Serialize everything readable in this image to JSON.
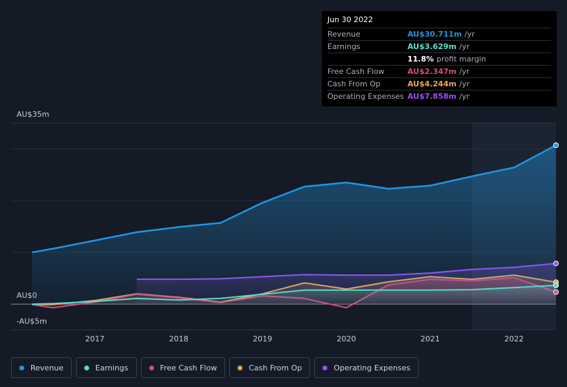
{
  "chart_data": {
    "type": "line",
    "x": [
      2016.25,
      2016.5,
      2017,
      2017.5,
      2018,
      2018.5,
      2019,
      2019.5,
      2020,
      2020.5,
      2021,
      2021.5,
      2022,
      2022.5
    ],
    "xlim": [
      2016,
      2022.5
    ],
    "xticks": [
      2017,
      2018,
      2019,
      2020,
      2021,
      2022
    ],
    "ylim": [
      -5,
      35
    ],
    "yticks": [
      {
        "value": 35,
        "label": "AU$35m"
      },
      {
        "value": 0,
        "label": "AU$0"
      },
      {
        "value": -5,
        "label": "-AU$5m"
      }
    ],
    "grid_values": [
      10,
      20,
      30
    ],
    "highlight_start": 2021.5,
    "series": [
      {
        "name": "Revenue",
        "color": "#2394df",
        "values": [
          10,
          10.7,
          12.3,
          13.9,
          14.9,
          15.7,
          19.6,
          22.7,
          23.5,
          22.3,
          22.9,
          24.7,
          26.4,
          30.711
        ]
      },
      {
        "name": "Earnings",
        "color": "#5ae0cc",
        "values": [
          0,
          0.1,
          0.5,
          1.1,
          0.8,
          1.1,
          1.9,
          2.7,
          2.7,
          2.7,
          2.7,
          2.8,
          3.2,
          3.629
        ]
      },
      {
        "name": "Free Cash Flow",
        "color": "#d84a85",
        "values": [
          -0.1,
          -0.7,
          0.4,
          1.9,
          1.2,
          0.3,
          1.6,
          1.1,
          -0.7,
          3.7,
          4.8,
          4.5,
          5.1,
          2.347
        ]
      },
      {
        "name": "Cash From Op",
        "color": "#eaa55a",
        "values": [
          -0.1,
          -0.1,
          0.7,
          2.0,
          1.3,
          0.4,
          2.0,
          4.1,
          2.9,
          4.3,
          5.3,
          4.8,
          5.6,
          4.244
        ]
      },
      {
        "name": "Operating Expenses",
        "color": "#9b4ff0",
        "values": [
          null,
          null,
          null,
          4.8,
          4.8,
          4.9,
          5.3,
          5.7,
          5.6,
          5.6,
          6.0,
          6.7,
          7.1,
          7.858
        ]
      }
    ],
    "tooltip": {
      "date": "Jun 30 2022",
      "rows": [
        {
          "label": "Revenue",
          "value": "AU$30.711m",
          "unit": "/yr",
          "color": "#2394df"
        },
        {
          "label": "Earnings",
          "value": "AU$3.629m",
          "unit": "/yr",
          "color": "#5ae0cc"
        },
        {
          "label": "Free Cash Flow",
          "value": "AU$2.347m",
          "unit": "/yr",
          "color": "#d84a85"
        },
        {
          "label": "Cash From Op",
          "value": "AU$4.244m",
          "unit": "/yr",
          "color": "#eaa55a"
        },
        {
          "label": "Operating Expenses",
          "value": "AU$7.858m",
          "unit": "/yr",
          "color": "#9b4ff0"
        }
      ],
      "margin": {
        "value": "11.8%",
        "label": "profit margin"
      }
    }
  }
}
